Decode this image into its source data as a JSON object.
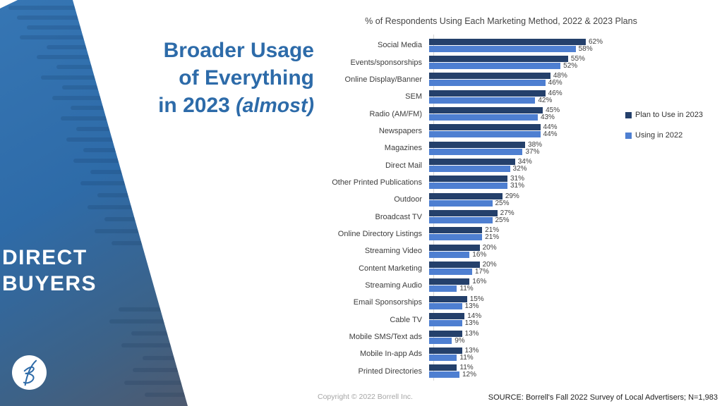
{
  "sidebar": {
    "label_line1": "DIRECT",
    "label_line2": "BUYERS"
  },
  "headline": {
    "line1": "Broader Usage",
    "line2": "of Everything",
    "line3": "in 2023 ",
    "line3_accent": "(almost)"
  },
  "footer": {
    "copyright": "Copyright © 2022 Borrell Inc.",
    "source": "SOURCE:  Borrell's Fall 2022 Survey of Local Advertisers; N=1,983"
  },
  "colors": {
    "plan_2023_bar": "#24406B",
    "using_2022_bar": "#4E7FD1",
    "sidebar_blue": "#2E6BA8",
    "headline_blue": "#2D6BA9"
  },
  "chart_data": {
    "type": "bar",
    "orientation": "horizontal",
    "title": "% of Respondents Using Each Marketing Method, 2022 & 2023 Plans",
    "categories": [
      "Social Media",
      "Events/sponsorships",
      "Online Display/Banner",
      "SEM",
      "Radio (AM/FM)",
      "Newspapers",
      "Magazines",
      "Direct Mail",
      "Other Printed Publications",
      "Outdoor",
      "Broadcast TV",
      "Online Directory Listings",
      "Streaming Video",
      "Content Marketing",
      "Streaming Audio",
      "Email Sponsorships",
      "Cable TV",
      "Mobile SMS/Text ads",
      "Mobile In-app Ads",
      "Printed Directories"
    ],
    "series": [
      {
        "name": "Plan to Use in 2023",
        "color": "#24406B",
        "values": [
          62,
          55,
          48,
          46,
          45,
          44,
          38,
          34,
          31,
          29,
          27,
          21,
          20,
          20,
          16,
          15,
          14,
          13,
          13,
          11
        ]
      },
      {
        "name": "Using in 2022",
        "color": "#4E7FD1",
        "values": [
          58,
          52,
          46,
          42,
          43,
          44,
          37,
          32,
          31,
          25,
          25,
          21,
          16,
          17,
          11,
          13,
          13,
          9,
          11,
          12
        ]
      }
    ],
    "value_suffix": "%",
    "xlim": [
      0,
      100
    ],
    "grid": false,
    "legend_position": "right-top"
  }
}
